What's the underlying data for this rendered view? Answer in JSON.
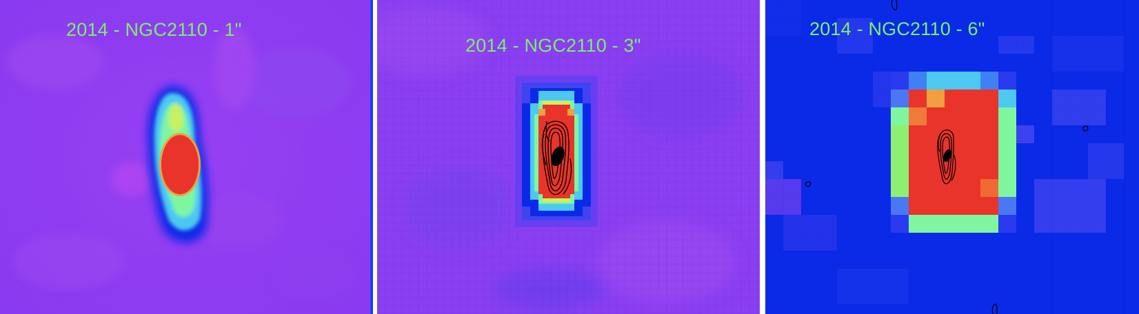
{
  "panels": [
    {
      "title": "2014 - NGC2110 - 1\""
    },
    {
      "title": "2014 - NGC2110 - 3\""
    },
    {
      "title": "2014 - NGC2110 - 6\""
    }
  ],
  "colors": {
    "label": "#7ef06a",
    "contour": "#000000",
    "divider": "#ffffff",
    "colormap": [
      "#0a2ae8",
      "#3f44f0",
      "#8c3ff2",
      "#4cc8f2",
      "#7ef6a0",
      "#9ef060",
      "#f0a040",
      "#e8342a"
    ]
  }
}
